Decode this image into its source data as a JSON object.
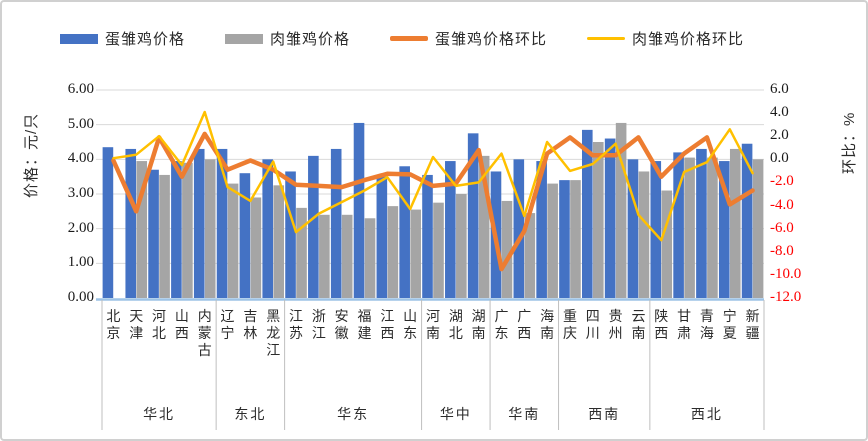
{
  "legend": [
    {
      "label": "蛋雏鸡价格",
      "marker": "bar",
      "color": "#4472C4"
    },
    {
      "label": "肉雏鸡价格",
      "marker": "bar",
      "color": "#A5A5A5"
    },
    {
      "label": "蛋雏鸡价格环比",
      "marker": "line",
      "color": "#ED7D31"
    },
    {
      "label": "肉雏鸡价格环比",
      "marker": "line",
      "color": "#FFC000"
    }
  ],
  "left_axis": {
    "title": "价格：元/只",
    "ticks": [
      "6.00",
      "5.00",
      "4.00",
      "3.00",
      "2.00",
      "1.00",
      "0.00"
    ],
    "min": 0,
    "max": 6
  },
  "right_axis": {
    "title": "环比：%",
    "ticks": [
      "6.0",
      "4.0",
      "2.0",
      "0.0",
      "-2.0",
      "-4.0",
      "-6.0",
      "-8.0",
      "-10.0",
      "-12.0"
    ],
    "min": -12,
    "max": 6,
    "negative_color": "#ff0000"
  },
  "chart_data": {
    "type": "combo-bar-line",
    "grid": true,
    "legend_position": "top",
    "axis_line_color": "#9DC3E6",
    "gridline_color": "#D9D9D9",
    "categories": [
      "北京",
      "天津",
      "河北",
      "山西",
      "内蒙古",
      "辽宁",
      "吉林",
      "黑龙江",
      "江苏",
      "浙江",
      "安徽",
      "福建",
      "江西",
      "山东",
      "河南",
      "湖北",
      "湖南",
      "广东",
      "广西",
      "海南",
      "重庆",
      "四川",
      "贵州",
      "云南",
      "陕西",
      "甘肃",
      "青海",
      "宁夏",
      "新疆"
    ],
    "regions": [
      {
        "name": "华北",
        "count": 5
      },
      {
        "name": "东北",
        "count": 3
      },
      {
        "name": "华东",
        "count": 6
      },
      {
        "name": "华中",
        "count": 3
      },
      {
        "name": "华南",
        "count": 3
      },
      {
        "name": "西南",
        "count": 4
      },
      {
        "name": "西北",
        "count": 5
      }
    ],
    "series": [
      {
        "name": "蛋雏鸡价格",
        "type": "bar",
        "axis": "left",
        "color": "#4472C4",
        "values": [
          4.35,
          4.3,
          3.7,
          3.95,
          4.3,
          4.3,
          3.6,
          4.0,
          3.65,
          4.1,
          4.3,
          5.05,
          3.5,
          3.8,
          3.55,
          3.95,
          4.75,
          3.65,
          4.0,
          3.95,
          3.4,
          4.85,
          4.6,
          4.0,
          3.95,
          4.2,
          4.3,
          3.95,
          4.45
        ]
      },
      {
        "name": "肉雏鸡价格",
        "type": "bar",
        "axis": "left",
        "color": "#A5A5A5",
        "values": [
          null,
          3.95,
          3.55,
          3.9,
          4.0,
          3.3,
          2.9,
          3.25,
          2.6,
          2.4,
          2.4,
          2.3,
          2.65,
          2.55,
          2.75,
          3.0,
          4.1,
          2.8,
          2.45,
          3.3,
          3.4,
          4.5,
          5.05,
          3.65,
          3.1,
          4.05,
          4.05,
          4.3,
          4.0
        ]
      },
      {
        "name": "蛋雏鸡价格环比",
        "type": "line",
        "axis": "right",
        "color": "#ED7D31",
        "width": 4.5,
        "values": [
          -0.1,
          -4.5,
          1.9,
          -1.5,
          2.2,
          -0.9,
          -0.1,
          -0.9,
          -2.2,
          -2.3,
          -2.4,
          -1.8,
          -1.25,
          -1.3,
          -2.3,
          -2.1,
          0.8,
          -9.5,
          -6.2,
          0.5,
          1.9,
          0.35,
          0.35,
          1.9,
          -1.5,
          0.5,
          1.9,
          -3.9,
          -2.7
        ]
      },
      {
        "name": "肉雏鸡价格环比",
        "type": "line",
        "axis": "right",
        "color": "#FFC000",
        "width": 2.5,
        "values": [
          0.1,
          0.4,
          2.0,
          -0.5,
          4.1,
          -2.4,
          -3.6,
          -0.2,
          -6.3,
          -4.7,
          -3.7,
          -2.7,
          -1.55,
          -4.3,
          0.2,
          -2.3,
          -2.0,
          0.5,
          -4.9,
          1.5,
          -1.0,
          -0.4,
          1.35,
          -4.8,
          -7.0,
          -1.1,
          -0.25,
          2.6,
          -1.2
        ]
      }
    ],
    "left_ylim": [
      0,
      6
    ],
    "right_ylim": [
      -12,
      6
    ]
  }
}
